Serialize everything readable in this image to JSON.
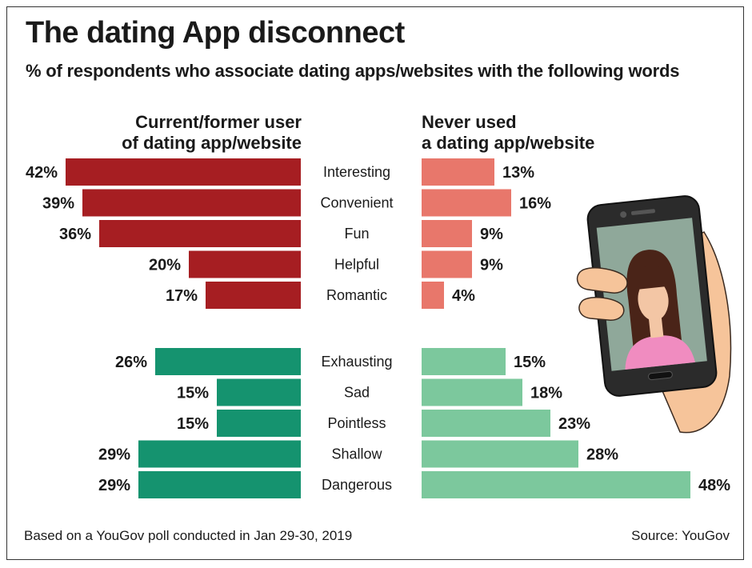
{
  "title": "The dating App disconnect",
  "subtitle": "% of respondents who associate dating apps/websites with the following words",
  "groups": {
    "left_line1": "Current/former user",
    "left_line2": "of dating app/website",
    "right_line1": "Never used",
    "right_line2": "a dating app/website"
  },
  "footer": {
    "note": "Based on a YouGov poll conducted in Jan 29-30, 2019",
    "source": "Source: YouGov"
  },
  "colors": {
    "positive_user": "#a61e22",
    "positive_never": "#e8776b",
    "negative_user": "#15936f",
    "negative_never": "#7cc89d"
  },
  "chart_data": {
    "type": "bar",
    "orientation": "horizontal-butterfly",
    "unit": "%",
    "series": [
      {
        "name": "Current/former user of dating app/website"
      },
      {
        "name": "Never used a dating app/website"
      }
    ],
    "sections": [
      {
        "categories": [
          "Interesting",
          "Convenient",
          "Fun",
          "Helpful",
          "Romantic"
        ],
        "user": [
          42,
          39,
          36,
          20,
          17
        ],
        "never": [
          13,
          16,
          9,
          9,
          4
        ]
      },
      {
        "categories": [
          "Exhausting",
          "Sad",
          "Pointless",
          "Shallow",
          "Dangerous"
        ],
        "user": [
          26,
          15,
          15,
          29,
          29
        ],
        "never": [
          15,
          18,
          23,
          28,
          48
        ]
      }
    ]
  }
}
